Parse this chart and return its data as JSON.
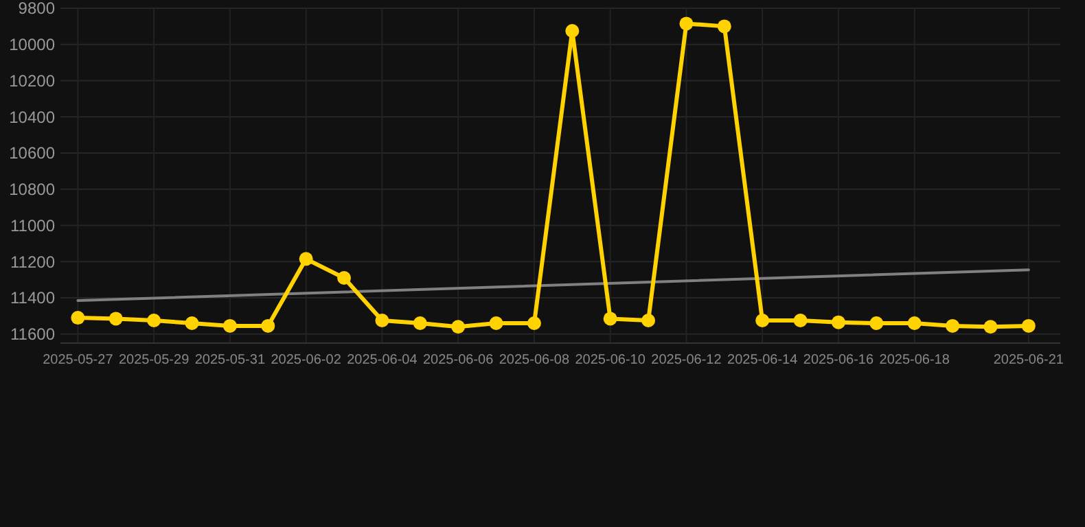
{
  "chart_data": {
    "type": "line",
    "x": [
      "2025-05-27",
      "2025-05-28",
      "2025-05-29",
      "2025-05-30",
      "2025-05-31",
      "2025-06-01",
      "2025-06-02",
      "2025-06-03",
      "2025-06-04",
      "2025-06-05",
      "2025-06-06",
      "2025-06-07",
      "2025-06-08",
      "2025-06-09",
      "2025-06-10",
      "2025-06-11",
      "2025-06-12",
      "2025-06-13",
      "2025-06-14",
      "2025-06-15",
      "2025-06-16",
      "2025-06-17",
      "2025-06-18",
      "2025-06-19",
      "2025-06-20",
      "2025-06-21"
    ],
    "series": [
      {
        "color": "#808080",
        "x": [
          "2025-05-27",
          "2025-06-21"
        ],
        "values": [
          11415,
          11245
        ],
        "marker": "none"
      },
      {
        "color": "#ffd200",
        "values": [
          11510,
          11515,
          11525,
          11540,
          11555,
          11555,
          11185,
          11290,
          11525,
          11540,
          11560,
          11540,
          11540,
          9925,
          11515,
          11525,
          9885,
          9900,
          11525,
          11525,
          11535,
          11540,
          11540,
          11555,
          11560,
          11555
        ],
        "marker": "circle"
      }
    ],
    "xlim": [
      "2025-05-26T13:00",
      "2025-06-21T20:00"
    ],
    "xticks": [
      {
        "value": "2025-05-27",
        "label": "2025-05-27"
      },
      {
        "value": "2025-05-29",
        "label": "2025-05-29"
      },
      {
        "value": "2025-05-31",
        "label": "2025-05-31"
      },
      {
        "value": "2025-06-02",
        "label": "2025-06-02"
      },
      {
        "value": "2025-06-04",
        "label": "2025-06-04"
      },
      {
        "value": "2025-06-06",
        "label": "2025-06-06"
      },
      {
        "value": "2025-06-08",
        "label": "2025-06-08"
      },
      {
        "value": "2025-06-10",
        "label": "2025-06-10"
      },
      {
        "value": "2025-06-12",
        "label": "2025-06-12"
      },
      {
        "value": "2025-06-14",
        "label": "2025-06-14"
      },
      {
        "value": "2025-06-16",
        "label": "2025-06-16"
      },
      {
        "value": "2025-06-18",
        "label": "2025-06-18"
      },
      {
        "value": "2025-06-21",
        "label": "2025-06-21"
      }
    ],
    "ylim": [
      11650,
      9800
    ],
    "yticks": [
      9800,
      10000,
      10200,
      10400,
      10600,
      10800,
      11000,
      11200,
      11400,
      11600
    ],
    "grid": true,
    "line_style": "solid"
  }
}
